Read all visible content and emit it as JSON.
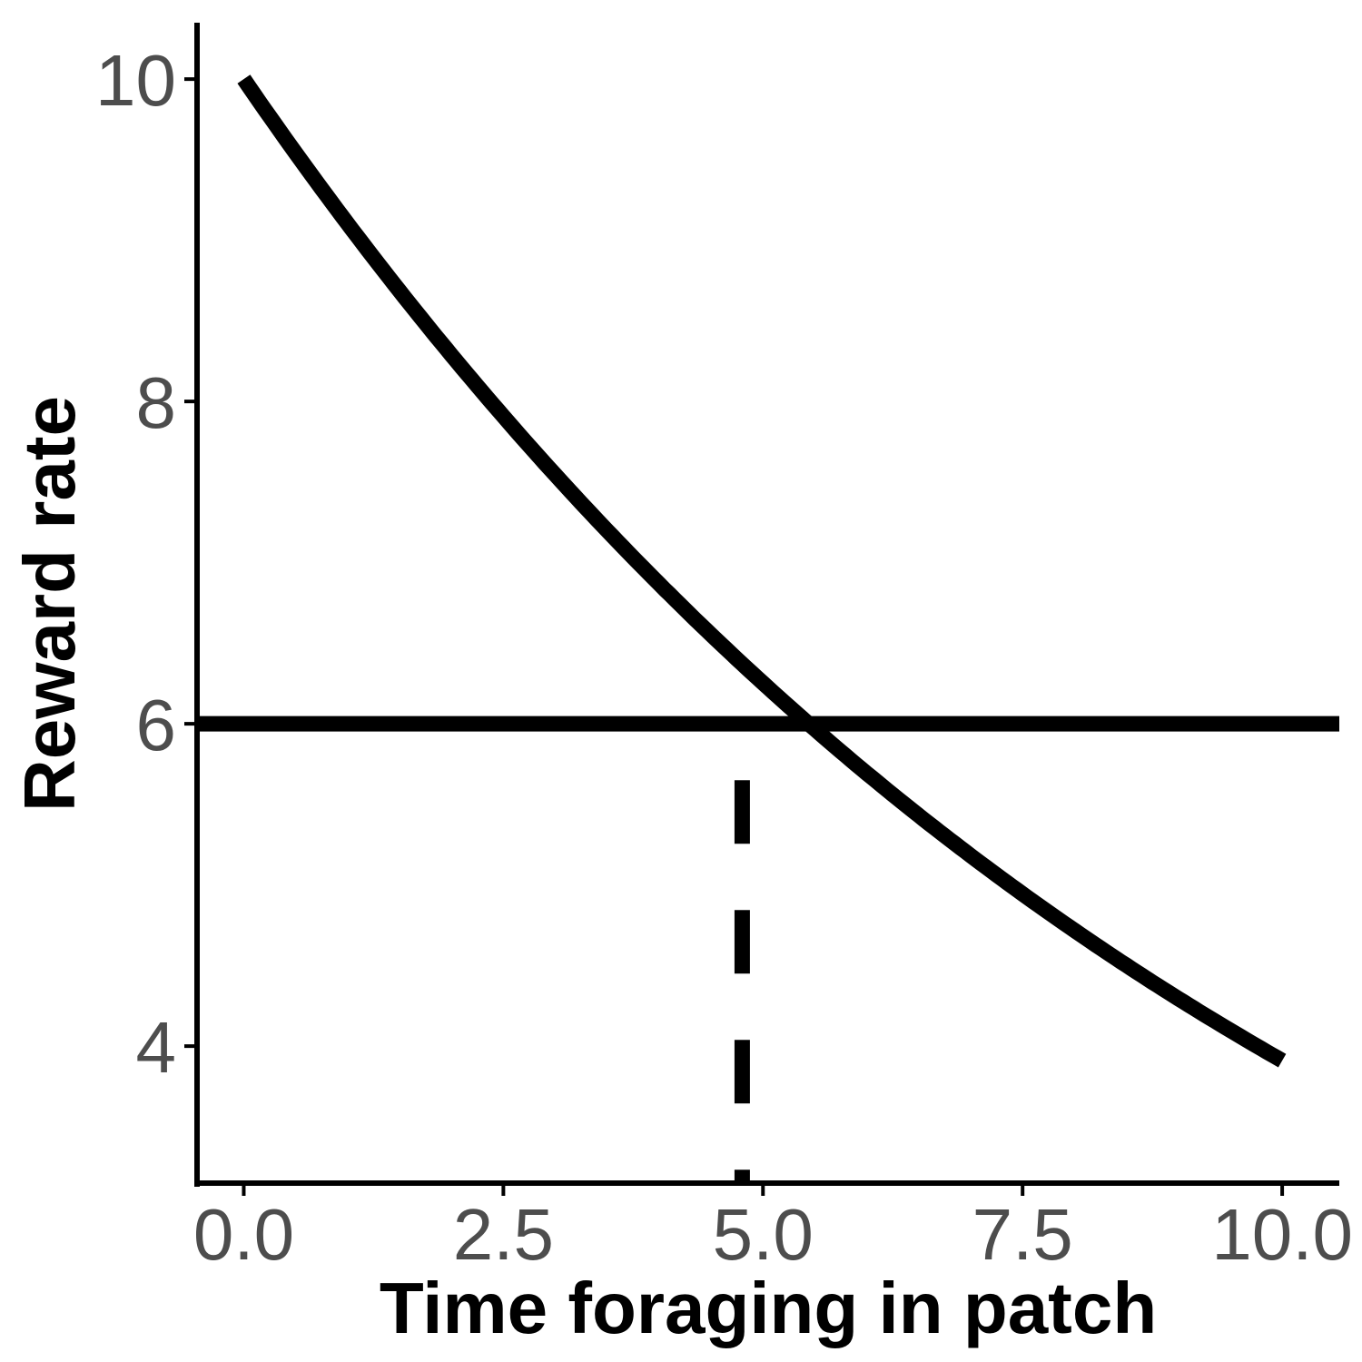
{
  "chart_data": {
    "type": "line",
    "title": "",
    "xlabel": "Time foraging in patch",
    "ylabel": "Reward rate",
    "xlim": [
      -0.45,
      10.55
    ],
    "ylim": [
      3.15,
      10.35
    ],
    "x_ticks": [
      0,
      2.5,
      5,
      7.5,
      10
    ],
    "x_tick_labels": [
      "0.0",
      "2.5",
      "5.0",
      "7.5",
      "10.0"
    ],
    "y_ticks": [
      4,
      6,
      8,
      10
    ],
    "y_tick_labels": [
      "4",
      "6",
      "8",
      "10"
    ],
    "grid": false,
    "legend": "none",
    "series": [
      {
        "style": "solid",
        "color": "#000000",
        "x": [
          0,
          0.5,
          1,
          1.5,
          2,
          2.5,
          3,
          3.5,
          4,
          4.5,
          4.8,
          5,
          5.5,
          6,
          6.5,
          7,
          7.5,
          8,
          8.5,
          9,
          9.5,
          10
        ],
        "y": [
          10,
          9.54,
          9.1,
          8.68,
          8.28,
          7.9,
          7.54,
          7.19,
          6.86,
          6.55,
          6.0,
          6.25,
          5.96,
          5.69,
          5.43,
          5.18,
          4.94,
          4.72,
          4.5,
          4.29,
          4.1,
          3.91
        ]
      }
    ],
    "reference_lines": [
      {
        "orientation": "horizontal",
        "y": 6,
        "style": "solid",
        "color": "#000000"
      },
      {
        "orientation": "vertical",
        "x": 4.8,
        "y_from": 3.15,
        "y_to": 5.65,
        "style": "dashed",
        "color": "#000000"
      }
    ]
  }
}
